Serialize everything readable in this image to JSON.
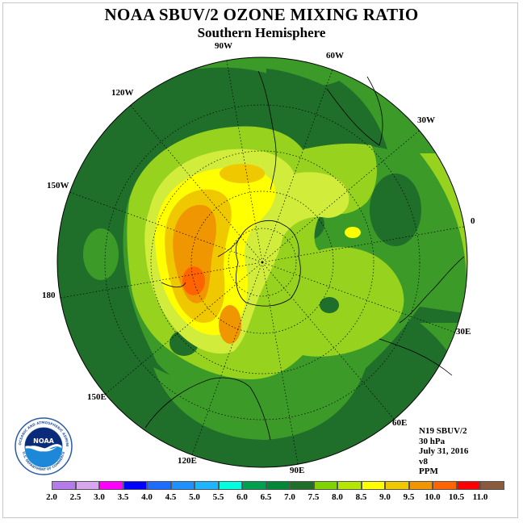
{
  "title": "NOAA SBUV/2 OZONE MIXING RATIO",
  "subtitle": "Southern Hemisphere",
  "longitude_labels": [
    {
      "text": "90W",
      "id": "lon-90w"
    },
    {
      "text": "60W",
      "id": "lon-60w"
    },
    {
      "text": "120W",
      "id": "lon-120w"
    },
    {
      "text": "30W",
      "id": "lon-30w"
    },
    {
      "text": "150W",
      "id": "lon-150w"
    },
    {
      "text": "0",
      "id": "lon-0"
    },
    {
      "text": "180",
      "id": "lon-180"
    },
    {
      "text": "30E",
      "id": "lon-30e"
    },
    {
      "text": "150E",
      "id": "lon-150e"
    },
    {
      "text": "60E",
      "id": "lon-60e"
    },
    {
      "text": "120E",
      "id": "lon-120e"
    },
    {
      "text": "90E",
      "id": "lon-90e"
    }
  ],
  "info": {
    "satellite": "N19 SBUV/2",
    "level": "30 hPa",
    "date": "July 31, 2016",
    "version": "v8",
    "units": "PPM"
  },
  "logo": {
    "text": "NOAA",
    "ring_text": "NATIONAL OCEANIC AND ATMOSPHERIC ADMINISTRATION",
    "ring_text_bottom": "U.S. DEPARTMENT OF COMMERCE"
  },
  "colorbar": {
    "ticks": [
      "2.0",
      "2.5",
      "3.0",
      "3.5",
      "4.0",
      "4.5",
      "5.0",
      "5.5",
      "6.0",
      "6.5",
      "7.0",
      "7.5",
      "8.0",
      "8.5",
      "9.0",
      "9.5",
      "10.0",
      "10.5",
      "11.0"
    ],
    "colors": [
      "#b57bea",
      "#d8a6f0",
      "#ff00ff",
      "#0000ff",
      "#1e6cff",
      "#1e90ff",
      "#1eb4ff",
      "#00ffe0",
      "#00a050",
      "#008838",
      "#1f6e2a",
      "#80d200",
      "#b4e600",
      "#ffff00",
      "#f0c800",
      "#f09600",
      "#ff6400",
      "#ff0000",
      "#8b5a3c"
    ]
  },
  "map": {
    "projection": "south-polar-stereographic",
    "colors": {
      "band_6_5": "#1f6e2a",
      "band_7_0": "#3c9a28",
      "band_7_5": "#96d21e",
      "band_8_0": "#d2ec3c",
      "band_8_5": "#ffff00",
      "band_9_0": "#f0c800",
      "band_9_5": "#f09600",
      "band_10_0": "#ff6400"
    }
  }
}
